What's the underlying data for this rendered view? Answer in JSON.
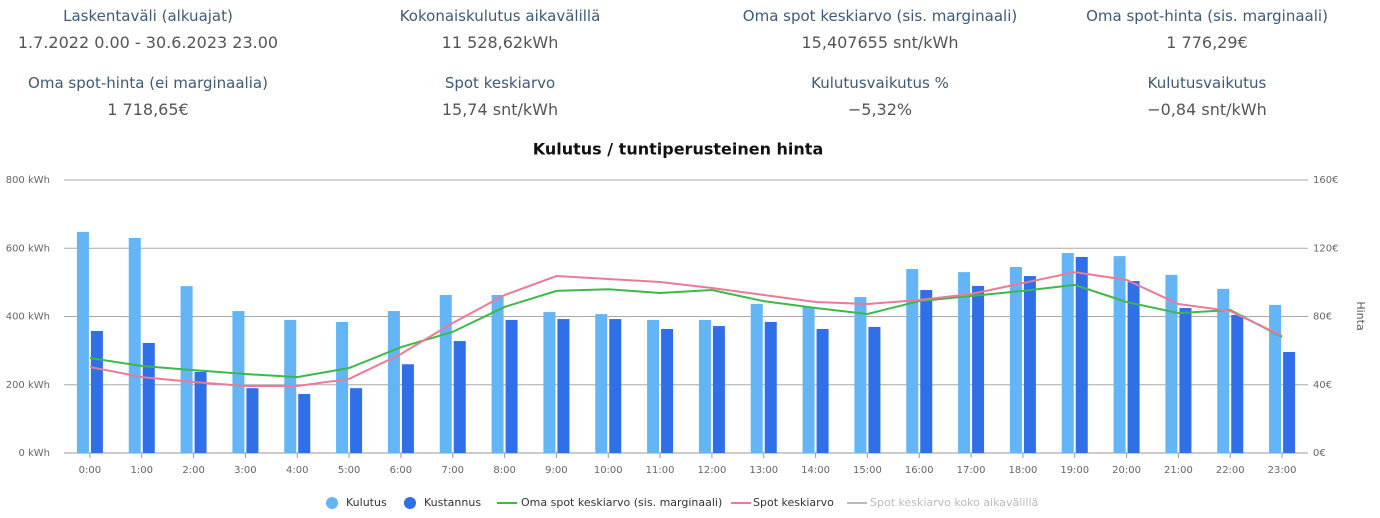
{
  "stats": [
    {
      "label": "Laskentaväli (alkuajat)",
      "value": "1.7.2022 0.00 - 30.6.2023 23.00"
    },
    {
      "label": "Kokonaiskulutus aikavälillä",
      "value": "11 528,62kWh"
    },
    {
      "label": "Oma spot keskiarvo (sis. marginaali)",
      "value": "15,407655 snt/kWh"
    },
    {
      "label": "Oma spot-hinta (sis. marginaali)",
      "value": "1 776,29€"
    },
    {
      "label": "Oma spot-hinta (ei marginaalia)",
      "value": "1 718,65€"
    },
    {
      "label": "Spot keskiarvo",
      "value": "15,74 snt/kWh"
    },
    {
      "label": "Kulutusvaikutus %",
      "value": "−5,32%"
    },
    {
      "label": "Kulutusvaikutus",
      "value": "−0,84 snt/kWh"
    }
  ],
  "chart_data": {
    "type": "bar_line",
    "title": "Kulutus / tuntiperusteinen hinta",
    "y2_label": "Hinta",
    "categories": [
      "0:00",
      "1:00",
      "2:00",
      "3:00",
      "4:00",
      "5:00",
      "6:00",
      "7:00",
      "8:00",
      "9:00",
      "10:00",
      "11:00",
      "12:00",
      "13:00",
      "14:00",
      "15:00",
      "16:00",
      "17:00",
      "18:00",
      "19:00",
      "20:00",
      "21:00",
      "22:00",
      "23:00"
    ],
    "ylim": [
      0,
      800
    ],
    "yticks": [
      {
        "value": 0,
        "label": "0 kWh"
      },
      {
        "value": 200,
        "label": "200 kWh"
      },
      {
        "value": 400,
        "label": "400 kWh"
      },
      {
        "value": 600,
        "label": "600 kWh"
      },
      {
        "value": 800,
        "label": "800 kWh"
      }
    ],
    "y2lim": [
      0,
      160
    ],
    "y2ticks": [
      {
        "value": 0,
        "label": "0€"
      },
      {
        "value": 40,
        "label": "40€"
      },
      {
        "value": 80,
        "label": "80€"
      },
      {
        "value": 120,
        "label": "120€"
      },
      {
        "value": 160,
        "label": "160€"
      }
    ],
    "grid": true,
    "series": [
      {
        "name": "Kulutus",
        "kind": "bar",
        "color": "#64b5f6",
        "values": [
          648,
          630,
          489,
          416,
          390,
          384,
          416,
          463,
          463,
          413,
          407,
          390,
          390,
          437,
          428,
          457,
          539,
          530,
          545,
          586,
          577,
          522,
          481,
          434
        ]
      },
      {
        "name": "Kustannus",
        "kind": "bar",
        "axis": "y2",
        "color": "#2f6fe8",
        "values": [
          71.5,
          64.5,
          47.5,
          38,
          34.6,
          38,
          52,
          65.6,
          78,
          78.5,
          78.5,
          72.7,
          74.4,
          76.8,
          72.7,
          73.9,
          95.5,
          97.9,
          103.7,
          114.9,
          100.8,
          85,
          80.9,
          59.2
        ]
      },
      {
        "name": "Oma spot keskiarvo (sis. marginaali)",
        "kind": "line",
        "axis": "y2",
        "color": "#3cb94a",
        "values": [
          55.7,
          51,
          48.6,
          46.3,
          44.5,
          49.8,
          62,
          71,
          85.6,
          95,
          96,
          93.8,
          95.5,
          89,
          85,
          81.5,
          89,
          92,
          95,
          98.5,
          88.5,
          82,
          83.8,
          68
        ]
      },
      {
        "name": "Spot keskiarvo",
        "kind": "line",
        "axis": "y2",
        "color": "#ec7a97",
        "values": [
          50.4,
          44.5,
          41.6,
          39.3,
          39.3,
          43.4,
          58,
          76.2,
          92.6,
          103.7,
          102,
          100.2,
          96.7,
          92.6,
          88.5,
          87.3,
          89.7,
          93.2,
          99.6,
          106,
          101.4,
          87.3,
          83.2,
          68.6
        ]
      },
      {
        "name": "Spot keskiarvo koko aikavälillä",
        "kind": "line",
        "axis": "y2",
        "color": "#bbbbbb",
        "hidden": true
      }
    ]
  }
}
